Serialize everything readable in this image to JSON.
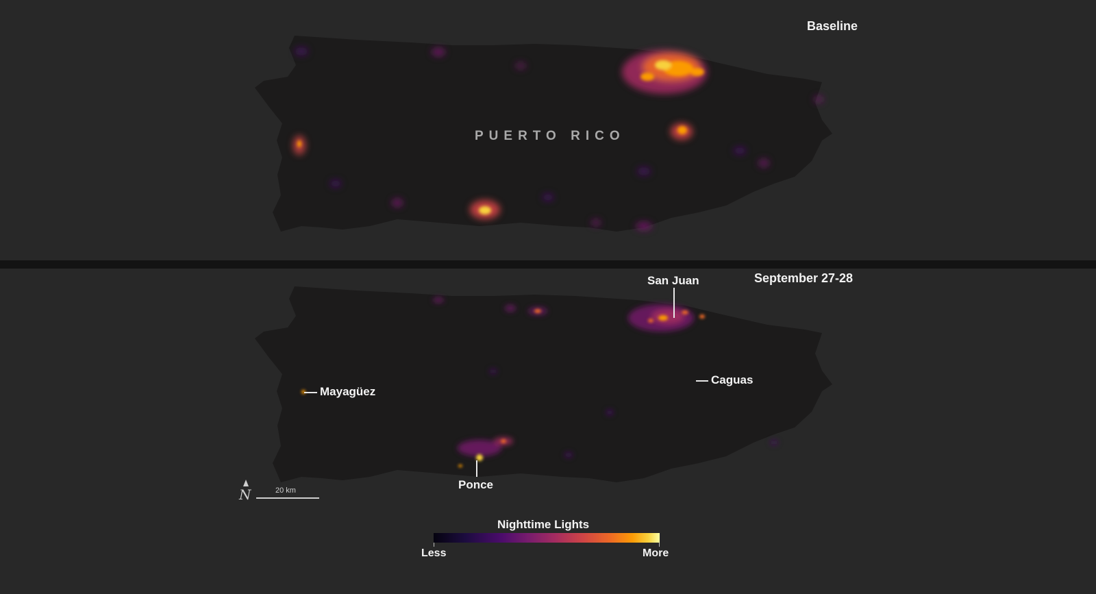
{
  "panels": {
    "top": {
      "label": "Baseline",
      "island_name": "PUERTO RICO"
    },
    "bottom": {
      "label": "September 27-28"
    }
  },
  "cities": {
    "san_juan": "San Juan",
    "caguas": "Caguas",
    "mayaguez": "Mayagüez",
    "ponce": "Ponce"
  },
  "scale_bar": {
    "label": "20 km"
  },
  "north_arrow": {
    "glyph": "N"
  },
  "legend": {
    "title": "Nighttime Lights",
    "low": "Less",
    "high": "More",
    "colors": [
      "#05030f",
      "#4b0c6b",
      "#a52c60",
      "#ed6925",
      "#fb9b06",
      "#fcffa4"
    ]
  },
  "colors": {
    "background": "#282828",
    "island": "#1c1b1b",
    "divider": "#131313"
  }
}
